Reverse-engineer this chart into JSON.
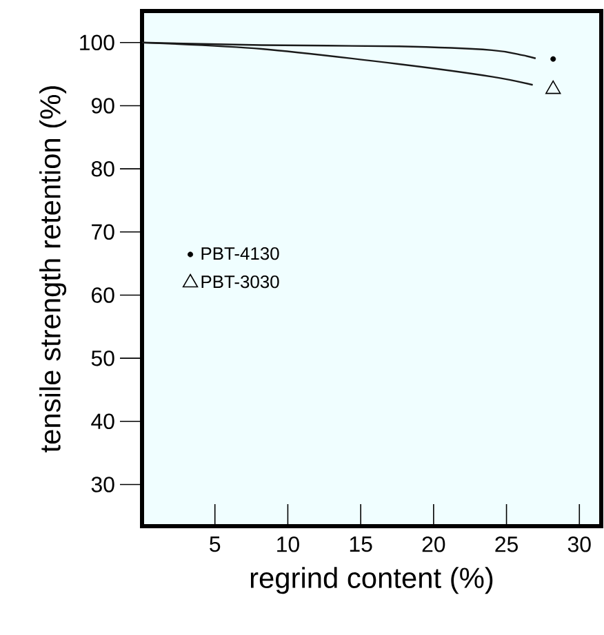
{
  "chart_data": {
    "type": "line",
    "xlabel": "regrind content (%)",
    "ylabel": "tensile strength retention (%)",
    "xlim": [
      0,
      31.5
    ],
    "ylim": [
      23.4,
      105
    ],
    "xticks": [
      5,
      10,
      15,
      20,
      25,
      30
    ],
    "yticks": [
      30,
      40,
      50,
      60,
      70,
      80,
      90,
      100
    ],
    "legend": "left",
    "grid": false,
    "series": [
      {
        "color": "#1a1a1a",
        "marker": "none",
        "x": [
          0,
          8.2,
          17.6,
          24,
          26.1,
          27
        ],
        "values": [
          100,
          99.6,
          99.4,
          98.8,
          98.0,
          97.5
        ]
      },
      {
        "color": "#1a1a1a",
        "marker": "none",
        "x": [
          0,
          8.2,
          17.6,
          24,
          26.8
        ],
        "values": [
          100,
          99.0,
          96.6,
          94.6,
          93.3
        ]
      },
      {
        "type": "scatter",
        "name": "PBT-4130",
        "color": "#000000",
        "marker": "circle",
        "x": [
          28.2
        ],
        "values": [
          97.4
        ]
      },
      {
        "type": "scatter",
        "name": "PBT-3030",
        "color": "#000000",
        "marker": "triangle",
        "x": [
          28.2
        ],
        "values": [
          92.6
        ]
      }
    ]
  }
}
